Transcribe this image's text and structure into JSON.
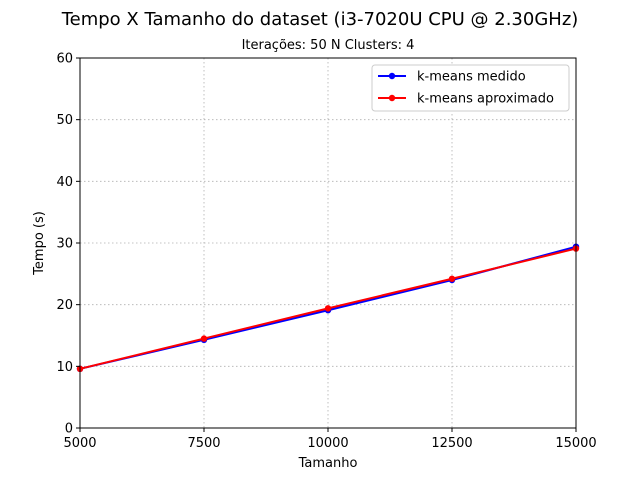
{
  "chart_data": {
    "type": "line",
    "title": "Tempo X Tamanho do dataset (i3-7020U CPU @ 2.30GHz)",
    "subtitle": "Iterações: 50 N Clusters: 4",
    "xlabel": "Tamanho",
    "ylabel": "Tempo (s)",
    "xlim": [
      5000,
      15000
    ],
    "ylim": [
      0,
      60
    ],
    "xticks": [
      5000,
      7500,
      10000,
      12500,
      15000
    ],
    "yticks": [
      0,
      10,
      20,
      30,
      40,
      50,
      60
    ],
    "grid": true,
    "legend_position": "top-right",
    "x": [
      5000,
      7500,
      10000,
      12500,
      15000
    ],
    "series": [
      {
        "name": "k-means medido",
        "color": "#0000ff",
        "values": [
          9.6,
          14.3,
          19.1,
          24.0,
          29.4
        ]
      },
      {
        "name": "k-means aproximado",
        "color": "#ff0000",
        "values": [
          9.6,
          14.5,
          19.4,
          24.2,
          29.1
        ]
      }
    ]
  }
}
